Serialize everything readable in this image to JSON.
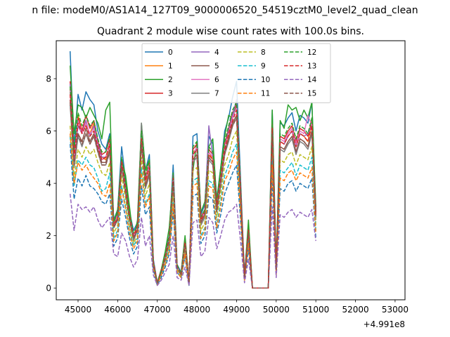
{
  "figure": {
    "suptitle": "n file: modeM0/AS1A14_127T09_9000006520_54519cztM0_level2_quad_clean"
  },
  "chart_data": {
    "type": "line",
    "title": "Quadrant 2 module wise count rates with 100.0s bins.",
    "xlabel": "",
    "ylabel": "",
    "x_offset_label": "+4.991e8",
    "xlim": [
      44450,
      53250
    ],
    "ylim": [
      -0.45,
      9.45
    ],
    "xticks": [
      45000,
      46000,
      47000,
      48000,
      49000,
      50000,
      51000,
      52000,
      53000
    ],
    "yticks": [
      0,
      2,
      4,
      6,
      8
    ],
    "grid": false,
    "legend": {
      "placement": "top-center",
      "ncol": 4
    },
    "x_start": 44800,
    "x_step": 100,
    "series": [
      {
        "name": "0",
        "color": "#1f77b4",
        "dash": "solid",
        "values": [
          9.05,
          5.4,
          7.4,
          6.8,
          7.5,
          7.2,
          7.0,
          6.0,
          5.5,
          5.3,
          5.9,
          2.6,
          3.0,
          5.4,
          4.1,
          2.9,
          2.2,
          2.5,
          6.2,
          4.5,
          5.1,
          1.1,
          0.2,
          0.7,
          1.3,
          2.0,
          4.7,
          0.9,
          0.6,
          1.9,
          0.2,
          5.8,
          5.9,
          2.8,
          3.2,
          5.8,
          5.5,
          3.4,
          4.6,
          6.0,
          6.5,
          7.3,
          7.9,
          4.2,
          0.5,
          2.4,
          0.0,
          0.0,
          0.0,
          0.0,
          0.0,
          6.8,
          0.8,
          6.3,
          6.2,
          6.5,
          6.7,
          6.0,
          6.6,
          6.5,
          6.3,
          7.1,
          3.0
        ]
      },
      {
        "name": "1",
        "color": "#ff7f0e",
        "dash": "solid",
        "values": [
          7.6,
          5.0,
          6.6,
          6.0,
          6.2,
          5.9,
          6.3,
          5.5,
          5.0,
          4.9,
          5.5,
          2.4,
          2.9,
          4.9,
          3.7,
          2.7,
          2.0,
          2.3,
          5.6,
          4.0,
          4.6,
          1.0,
          0.2,
          0.6,
          1.2,
          1.8,
          4.2,
          0.8,
          0.5,
          1.7,
          0.2,
          5.2,
          5.3,
          2.6,
          2.9,
          5.2,
          4.9,
          3.1,
          4.2,
          5.4,
          5.8,
          6.5,
          7.0,
          3.8,
          0.4,
          2.2,
          0.0,
          0.0,
          0.0,
          0.0,
          0.0,
          6.1,
          0.7,
          5.6,
          5.5,
          5.8,
          6.0,
          5.4,
          5.9,
          5.8,
          5.6,
          6.3,
          2.8
        ]
      },
      {
        "name": "2",
        "color": "#2ca02c",
        "dash": "solid",
        "values": [
          8.5,
          5.9,
          7.0,
          6.9,
          6.5,
          6.9,
          6.6,
          6.3,
          5.7,
          6.8,
          7.1,
          2.5,
          3.0,
          4.9,
          4.3,
          3.1,
          1.8,
          2.6,
          6.3,
          4.5,
          4.9,
          1.0,
          0.2,
          0.7,
          1.4,
          2.3,
          4.2,
          0.8,
          0.6,
          2.0,
          0.2,
          4.5,
          5.6,
          2.9,
          3.3,
          5.4,
          5.7,
          3.3,
          4.6,
          5.8,
          6.6,
          6.5,
          7.1,
          3.9,
          0.4,
          2.6,
          0.0,
          0.0,
          0.0,
          0.0,
          0.0,
          6.8,
          0.9,
          6.4,
          6.1,
          7.0,
          6.8,
          6.9,
          6.4,
          6.8,
          6.5,
          7.1,
          3.1
        ]
      },
      {
        "name": "3",
        "color": "#d62728",
        "dash": "solid",
        "values": [
          7.9,
          5.1,
          6.5,
          6.0,
          6.6,
          6.1,
          6.4,
          5.6,
          5.1,
          5.2,
          5.7,
          2.5,
          2.8,
          4.9,
          3.9,
          2.8,
          2.0,
          2.4,
          5.9,
          4.2,
          4.8,
          1.0,
          0.2,
          0.7,
          1.2,
          1.9,
          4.3,
          0.8,
          0.5,
          1.8,
          0.2,
          5.3,
          5.5,
          2.7,
          3.0,
          5.3,
          5.1,
          3.2,
          4.3,
          5.5,
          6.1,
          6.7,
          7.0,
          3.9,
          0.4,
          2.3,
          0.0,
          0.0,
          0.0,
          0.0,
          0.0,
          6.3,
          0.8,
          5.8,
          5.7,
          6.0,
          6.2,
          5.6,
          6.1,
          6.0,
          5.8,
          6.4,
          2.9
        ]
      },
      {
        "name": "4",
        "color": "#9467bd",
        "dash": "solid",
        "values": [
          7.8,
          4.8,
          6.2,
          5.9,
          6.4,
          5.8,
          6.2,
          5.5,
          5.0,
          5.0,
          5.5,
          2.4,
          2.7,
          4.8,
          3.8,
          2.7,
          1.9,
          2.3,
          5.7,
          4.1,
          4.6,
          1.0,
          0.2,
          0.6,
          1.2,
          1.9,
          4.1,
          0.8,
          0.5,
          1.7,
          0.2,
          5.1,
          5.3,
          2.6,
          2.9,
          6.2,
          5.0,
          3.0,
          4.1,
          5.4,
          6.0,
          6.6,
          7.2,
          3.7,
          0.4,
          2.2,
          0.0,
          0.0,
          0.0,
          0.0,
          0.0,
          6.1,
          0.7,
          5.6,
          5.5,
          5.8,
          6.0,
          5.4,
          5.9,
          5.8,
          5.9,
          6.2,
          2.8
        ]
      },
      {
        "name": "5",
        "color": "#8c564b",
        "dash": "solid",
        "values": [
          7.2,
          4.7,
          5.9,
          5.6,
          6.1,
          5.6,
          5.9,
          5.3,
          4.8,
          4.8,
          5.3,
          2.3,
          2.7,
          4.7,
          3.7,
          2.6,
          1.9,
          2.2,
          5.5,
          3.9,
          4.4,
          0.9,
          0.2,
          0.6,
          1.1,
          1.8,
          4.0,
          0.8,
          0.5,
          1.6,
          0.2,
          4.9,
          5.1,
          2.5,
          2.8,
          5.0,
          4.8,
          2.9,
          4.0,
          5.2,
          5.7,
          6.3,
          6.6,
          3.6,
          0.4,
          2.1,
          0.0,
          0.0,
          0.0,
          0.0,
          0.0,
          5.9,
          0.7,
          5.4,
          5.3,
          5.6,
          5.8,
          5.2,
          5.7,
          5.6,
          5.4,
          6.0,
          2.7
        ]
      },
      {
        "name": "6",
        "color": "#e377c2",
        "dash": "solid",
        "values": [
          7.5,
          4.9,
          6.4,
          5.9,
          6.3,
          5.9,
          6.1,
          5.4,
          4.9,
          5.0,
          5.5,
          2.4,
          2.8,
          4.8,
          3.8,
          2.7,
          2.0,
          2.3,
          5.8,
          4.1,
          4.7,
          1.0,
          0.2,
          0.6,
          1.2,
          1.9,
          4.2,
          0.8,
          0.5,
          1.7,
          0.2,
          5.1,
          5.4,
          2.6,
          2.9,
          5.2,
          5.0,
          3.1,
          4.2,
          5.4,
          5.9,
          6.5,
          6.9,
          3.8,
          0.4,
          2.2,
          0.0,
          0.0,
          0.0,
          0.0,
          0.0,
          6.1,
          0.7,
          5.7,
          5.6,
          5.9,
          6.1,
          5.5,
          6.0,
          5.9,
          6.6,
          6.2,
          2.8
        ]
      },
      {
        "name": "7",
        "color": "#7f7f7f",
        "dash": "solid",
        "values": [
          7.0,
          4.6,
          5.8,
          5.4,
          5.9,
          5.5,
          5.8,
          5.2,
          4.7,
          4.7,
          5.2,
          2.3,
          2.6,
          4.6,
          3.6,
          2.6,
          1.8,
          2.2,
          6.3,
          3.8,
          4.3,
          0.9,
          0.2,
          0.6,
          1.1,
          1.7,
          3.9,
          0.7,
          0.5,
          1.6,
          0.2,
          4.8,
          5.0,
          2.4,
          2.7,
          4.9,
          4.7,
          2.9,
          3.9,
          5.1,
          5.6,
          6.2,
          6.5,
          3.5,
          0.4,
          2.1,
          0.0,
          0.0,
          0.0,
          0.0,
          0.0,
          5.8,
          0.7,
          5.3,
          5.2,
          5.5,
          5.7,
          5.1,
          5.6,
          5.5,
          5.3,
          5.9,
          2.6
        ]
      },
      {
        "name": "8",
        "color": "#bcbd22",
        "dash": "dashed",
        "values": [
          6.2,
          4.2,
          5.3,
          5.0,
          5.4,
          5.1,
          5.3,
          4.8,
          4.4,
          4.3,
          4.8,
          2.1,
          2.4,
          4.3,
          3.4,
          2.4,
          1.7,
          2.0,
          5.0,
          3.5,
          4.0,
          0.8,
          0.2,
          0.5,
          1.0,
          1.6,
          3.6,
          0.7,
          0.4,
          1.5,
          0.2,
          4.5,
          4.6,
          2.2,
          2.5,
          4.5,
          4.4,
          2.7,
          3.6,
          4.7,
          5.1,
          5.7,
          6.0,
          3.3,
          0.4,
          1.9,
          0.0,
          0.0,
          0.0,
          0.0,
          0.0,
          5.3,
          0.6,
          4.9,
          4.8,
          5.1,
          5.2,
          4.7,
          5.1,
          5.0,
          4.9,
          5.4,
          2.4
        ]
      },
      {
        "name": "9",
        "color": "#17becf",
        "dash": "dashed",
        "values": [
          5.8,
          3.9,
          4.9,
          4.7,
          5.0,
          4.7,
          4.6,
          4.2,
          3.7,
          3.8,
          4.4,
          1.9,
          2.2,
          3.9,
          3.1,
          2.2,
          1.6,
          1.9,
          4.6,
          3.2,
          3.6,
          0.8,
          0.1,
          0.5,
          0.9,
          1.5,
          3.3,
          0.6,
          0.4,
          1.3,
          0.1,
          4.1,
          4.2,
          2.0,
          2.3,
          4.1,
          4.0,
          2.4,
          3.3,
          4.3,
          4.7,
          5.2,
          5.5,
          3.0,
          0.3,
          1.8,
          0.0,
          0.0,
          0.0,
          0.0,
          0.0,
          4.9,
          0.6,
          4.5,
          4.4,
          4.6,
          4.8,
          4.3,
          4.7,
          4.6,
          4.5,
          5.0,
          2.2
        ]
      },
      {
        "name": "10",
        "color": "#1f77b4",
        "dash": "dashed",
        "values": [
          5.5,
          3.4,
          4.2,
          3.9,
          4.3,
          3.9,
          3.8,
          3.6,
          3.3,
          3.2,
          3.6,
          1.6,
          1.9,
          3.4,
          2.7,
          1.9,
          1.3,
          1.6,
          3.9,
          2.8,
          3.1,
          0.7,
          0.1,
          0.4,
          0.8,
          1.3,
          2.9,
          0.6,
          0.4,
          1.2,
          0.1,
          3.5,
          3.6,
          1.7,
          2.0,
          3.5,
          3.4,
          2.1,
          2.8,
          3.6,
          4.0,
          4.4,
          4.7,
          2.6,
          0.3,
          1.5,
          0.0,
          0.0,
          0.0,
          0.0,
          0.0,
          4.2,
          0.5,
          3.8,
          3.7,
          4.0,
          4.1,
          3.7,
          4.0,
          3.9,
          3.8,
          4.2,
          1.9
        ]
      },
      {
        "name": "11",
        "color": "#ff7f0e",
        "dash": "dashed",
        "values": [
          5.9,
          4.0,
          4.8,
          4.5,
          4.7,
          4.4,
          4.2,
          4.0,
          3.6,
          3.5,
          4.0,
          1.8,
          2.1,
          3.8,
          3.0,
          2.1,
          1.5,
          1.8,
          4.4,
          3.1,
          3.5,
          0.8,
          0.1,
          0.5,
          0.9,
          1.4,
          3.2,
          0.6,
          0.4,
          1.3,
          0.1,
          3.9,
          4.0,
          1.9,
          2.2,
          3.9,
          3.8,
          2.3,
          3.1,
          4.1,
          4.4,
          4.9,
          5.2,
          2.9,
          0.3,
          1.7,
          0.0,
          0.0,
          0.0,
          0.0,
          0.0,
          4.7,
          0.5,
          4.2,
          4.1,
          4.4,
          4.5,
          4.1,
          4.4,
          4.3,
          4.2,
          4.6,
          2.1
        ]
      },
      {
        "name": "12",
        "color": "#2ca02c",
        "dash": "dashed",
        "values": [
          7.7,
          5.3,
          6.7,
          6.2,
          6.6,
          6.2,
          6.4,
          5.7,
          5.2,
          5.2,
          5.8,
          2.5,
          2.9,
          5.0,
          4.0,
          2.8,
          2.1,
          2.4,
          6.0,
          4.3,
          4.9,
          1.0,
          0.2,
          0.7,
          1.3,
          2.0,
          4.4,
          0.9,
          0.5,
          1.8,
          0.2,
          5.4,
          5.6,
          2.7,
          3.0,
          5.4,
          5.2,
          3.2,
          4.4,
          5.6,
          6.2,
          6.8,
          7.1,
          3.9,
          0.4,
          2.4,
          0.0,
          0.0,
          0.0,
          0.0,
          0.0,
          6.4,
          0.8,
          5.9,
          5.8,
          6.1,
          6.3,
          5.7,
          6.2,
          6.1,
          5.9,
          6.5,
          2.9
        ]
      },
      {
        "name": "13",
        "color": "#d62728",
        "dash": "dashed",
        "values": [
          7.4,
          5.0,
          6.3,
          5.9,
          6.2,
          5.8,
          6.0,
          5.4,
          4.9,
          5.0,
          5.5,
          2.4,
          2.7,
          4.8,
          3.8,
          2.7,
          2.0,
          2.3,
          5.7,
          4.1,
          4.6,
          1.0,
          0.2,
          0.6,
          1.2,
          1.9,
          4.2,
          0.8,
          0.5,
          1.7,
          0.2,
          5.1,
          5.3,
          2.6,
          2.9,
          5.1,
          4.9,
          3.1,
          4.2,
          5.3,
          5.9,
          6.4,
          6.8,
          3.7,
          0.4,
          2.2,
          0.0,
          0.0,
          0.0,
          0.0,
          0.0,
          6.1,
          0.7,
          5.6,
          5.5,
          5.8,
          6.0,
          5.4,
          5.9,
          5.8,
          5.6,
          6.2,
          2.8
        ]
      },
      {
        "name": "14",
        "color": "#9467bd",
        "dash": "dashed",
        "values": [
          3.6,
          2.2,
          3.2,
          3.0,
          3.1,
          2.9,
          3.1,
          2.6,
          2.3,
          2.5,
          2.7,
          1.3,
          1.2,
          2.1,
          1.8,
          1.2,
          0.8,
          1.1,
          2.7,
          1.6,
          2.0,
          0.5,
          0.1,
          0.3,
          0.6,
          0.9,
          2.0,
          0.4,
          0.3,
          0.8,
          0.1,
          2.5,
          2.6,
          1.2,
          1.4,
          2.7,
          2.5,
          1.5,
          2.0,
          2.6,
          2.9,
          3.0,
          3.2,
          1.8,
          0.2,
          1.1,
          0.0,
          0.0,
          0.0,
          0.0,
          0.0,
          3.1,
          0.4,
          2.8,
          2.7,
          2.9,
          3.0,
          2.7,
          2.9,
          2.8,
          2.7,
          3.0,
          1.8
        ]
      },
      {
        "name": "15",
        "color": "#8c564b",
        "dash": "dashed",
        "values": [
          7.1,
          4.7,
          5.9,
          5.5,
          5.9,
          5.5,
          5.8,
          5.2,
          4.7,
          4.7,
          5.2,
          2.3,
          2.6,
          4.6,
          3.6,
          2.6,
          1.9,
          2.2,
          5.5,
          3.9,
          4.4,
          0.9,
          0.2,
          0.6,
          1.1,
          1.8,
          4.0,
          0.8,
          0.5,
          1.6,
          0.2,
          4.9,
          5.1,
          2.5,
          2.8,
          5.0,
          4.8,
          2.9,
          4.0,
          5.1,
          5.7,
          6.2,
          6.5,
          3.6,
          0.4,
          2.1,
          0.0,
          0.0,
          0.0,
          0.0,
          0.0,
          5.9,
          0.7,
          5.4,
          5.3,
          5.6,
          5.8,
          5.2,
          5.7,
          5.6,
          5.4,
          6.0,
          2.7
        ]
      }
    ]
  }
}
